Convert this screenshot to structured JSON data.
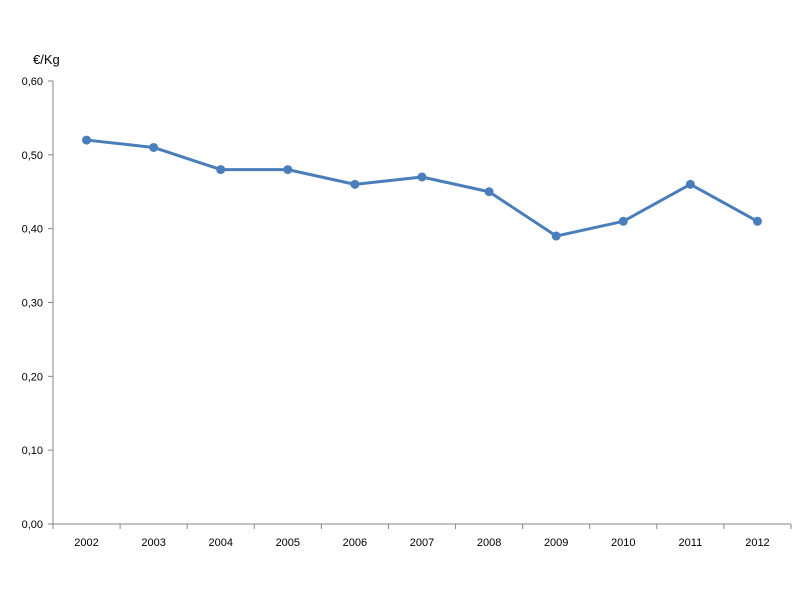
{
  "chart_data": {
    "type": "line",
    "title": "",
    "xlabel": "",
    "ylabel": "€/Kg",
    "categories": [
      "2002",
      "2003",
      "2004",
      "2005",
      "2006",
      "2007",
      "2008",
      "2009",
      "2010",
      "2011",
      "2012"
    ],
    "series": [
      {
        "values": [
          0.52,
          0.51,
          0.48,
          0.48,
          0.46,
          0.47,
          0.45,
          0.39,
          0.41,
          0.46,
          0.41
        ]
      }
    ],
    "ylim": [
      0,
      0.6
    ],
    "yticks": [
      "0,00",
      "0,10",
      "0,20",
      "0,30",
      "0,40",
      "0,50",
      "0,60"
    ],
    "grid": false,
    "legend": "none",
    "colors": {
      "line": "#4a7ebb",
      "axis": "#868686"
    }
  }
}
